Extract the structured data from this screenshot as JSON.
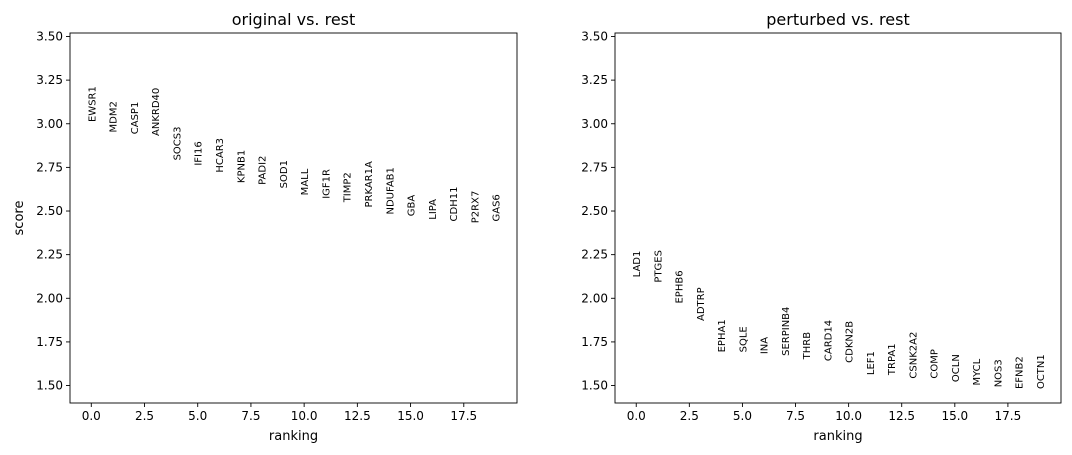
{
  "chart_data": [
    {
      "type": "scatter",
      "title": "original vs. rest",
      "xlabel": "ranking",
      "ylabel": "score",
      "xlim": [
        -1,
        20
      ],
      "ylim": [
        1.4,
        3.52
      ],
      "xticks": [
        "0.0",
        "2.5",
        "5.0",
        "7.5",
        "10.0",
        "12.5",
        "15.0",
        "17.5"
      ],
      "yticks": [
        "1.50",
        "1.75",
        "2.00",
        "2.25",
        "2.50",
        "2.75",
        "3.00",
        "3.25",
        "3.50"
      ],
      "grid": false,
      "genes": [
        {
          "name": "EWSR1",
          "x": 0,
          "y": 3.01
        },
        {
          "name": "MDM2",
          "x": 1,
          "y": 2.95
        },
        {
          "name": "CASP1",
          "x": 2,
          "y": 2.94
        },
        {
          "name": "ANKRD40",
          "x": 3,
          "y": 2.93
        },
        {
          "name": "SOCS3",
          "x": 4,
          "y": 2.79
        },
        {
          "name": "IFI16",
          "x": 5,
          "y": 2.76
        },
        {
          "name": "HCAR3",
          "x": 6,
          "y": 2.72
        },
        {
          "name": "KPNB1",
          "x": 7,
          "y": 2.66
        },
        {
          "name": "PADI2",
          "x": 8,
          "y": 2.65
        },
        {
          "name": "SOD1",
          "x": 9,
          "y": 2.63
        },
        {
          "name": "MALL",
          "x": 10,
          "y": 2.59
        },
        {
          "name": "IGF1R",
          "x": 11,
          "y": 2.57
        },
        {
          "name": "TIMP2",
          "x": 12,
          "y": 2.55
        },
        {
          "name": "PRKAR1A",
          "x": 13,
          "y": 2.52
        },
        {
          "name": "NDUFAB1",
          "x": 14,
          "y": 2.48
        },
        {
          "name": "GBA",
          "x": 15,
          "y": 2.47
        },
        {
          "name": "LIPA",
          "x": 16,
          "y": 2.45
        },
        {
          "name": "CDH11",
          "x": 17,
          "y": 2.44
        },
        {
          "name": "P2RX7",
          "x": 18,
          "y": 2.43
        },
        {
          "name": "GAS6",
          "x": 19,
          "y": 2.44
        }
      ]
    },
    {
      "type": "scatter",
      "title": "perturbed vs. rest",
      "xlabel": "ranking",
      "ylabel": "",
      "xlim": [
        -1,
        20
      ],
      "ylim": [
        1.4,
        3.52
      ],
      "xticks": [
        "0.0",
        "2.5",
        "5.0",
        "7.5",
        "10.0",
        "12.5",
        "15.0",
        "17.5"
      ],
      "yticks": [
        "1.50",
        "1.75",
        "2.00",
        "2.25",
        "2.50",
        "2.75",
        "3.00",
        "3.25",
        "3.50"
      ],
      "grid": false,
      "genes": [
        {
          "name": "LAD1",
          "x": 0,
          "y": 2.12
        },
        {
          "name": "PTGES",
          "x": 1,
          "y": 2.09
        },
        {
          "name": "EPHB6",
          "x": 2,
          "y": 1.97
        },
        {
          "name": "ADTRP",
          "x": 3,
          "y": 1.87
        },
        {
          "name": "EPHA1",
          "x": 4,
          "y": 1.69
        },
        {
          "name": "SQLE",
          "x": 5,
          "y": 1.69
        },
        {
          "name": "INA",
          "x": 6,
          "y": 1.68
        },
        {
          "name": "SERPINB4",
          "x": 7,
          "y": 1.67
        },
        {
          "name": "THRB",
          "x": 8,
          "y": 1.65
        },
        {
          "name": "CARD14",
          "x": 9,
          "y": 1.64
        },
        {
          "name": "CDKN2B",
          "x": 10,
          "y": 1.63
        },
        {
          "name": "LEF1",
          "x": 11,
          "y": 1.56
        },
        {
          "name": "TRPA1",
          "x": 12,
          "y": 1.56
        },
        {
          "name": "CSNK2A2",
          "x": 13,
          "y": 1.54
        },
        {
          "name": "COMP",
          "x": 14,
          "y": 1.54
        },
        {
          "name": "OCLN",
          "x": 15,
          "y": 1.52
        },
        {
          "name": "MYCL",
          "x": 16,
          "y": 1.5
        },
        {
          "name": "NOS3",
          "x": 17,
          "y": 1.49
        },
        {
          "name": "EFNB2",
          "x": 18,
          "y": 1.48
        },
        {
          "name": "OCTN1",
          "x": 19,
          "y": 1.48
        }
      ]
    }
  ]
}
